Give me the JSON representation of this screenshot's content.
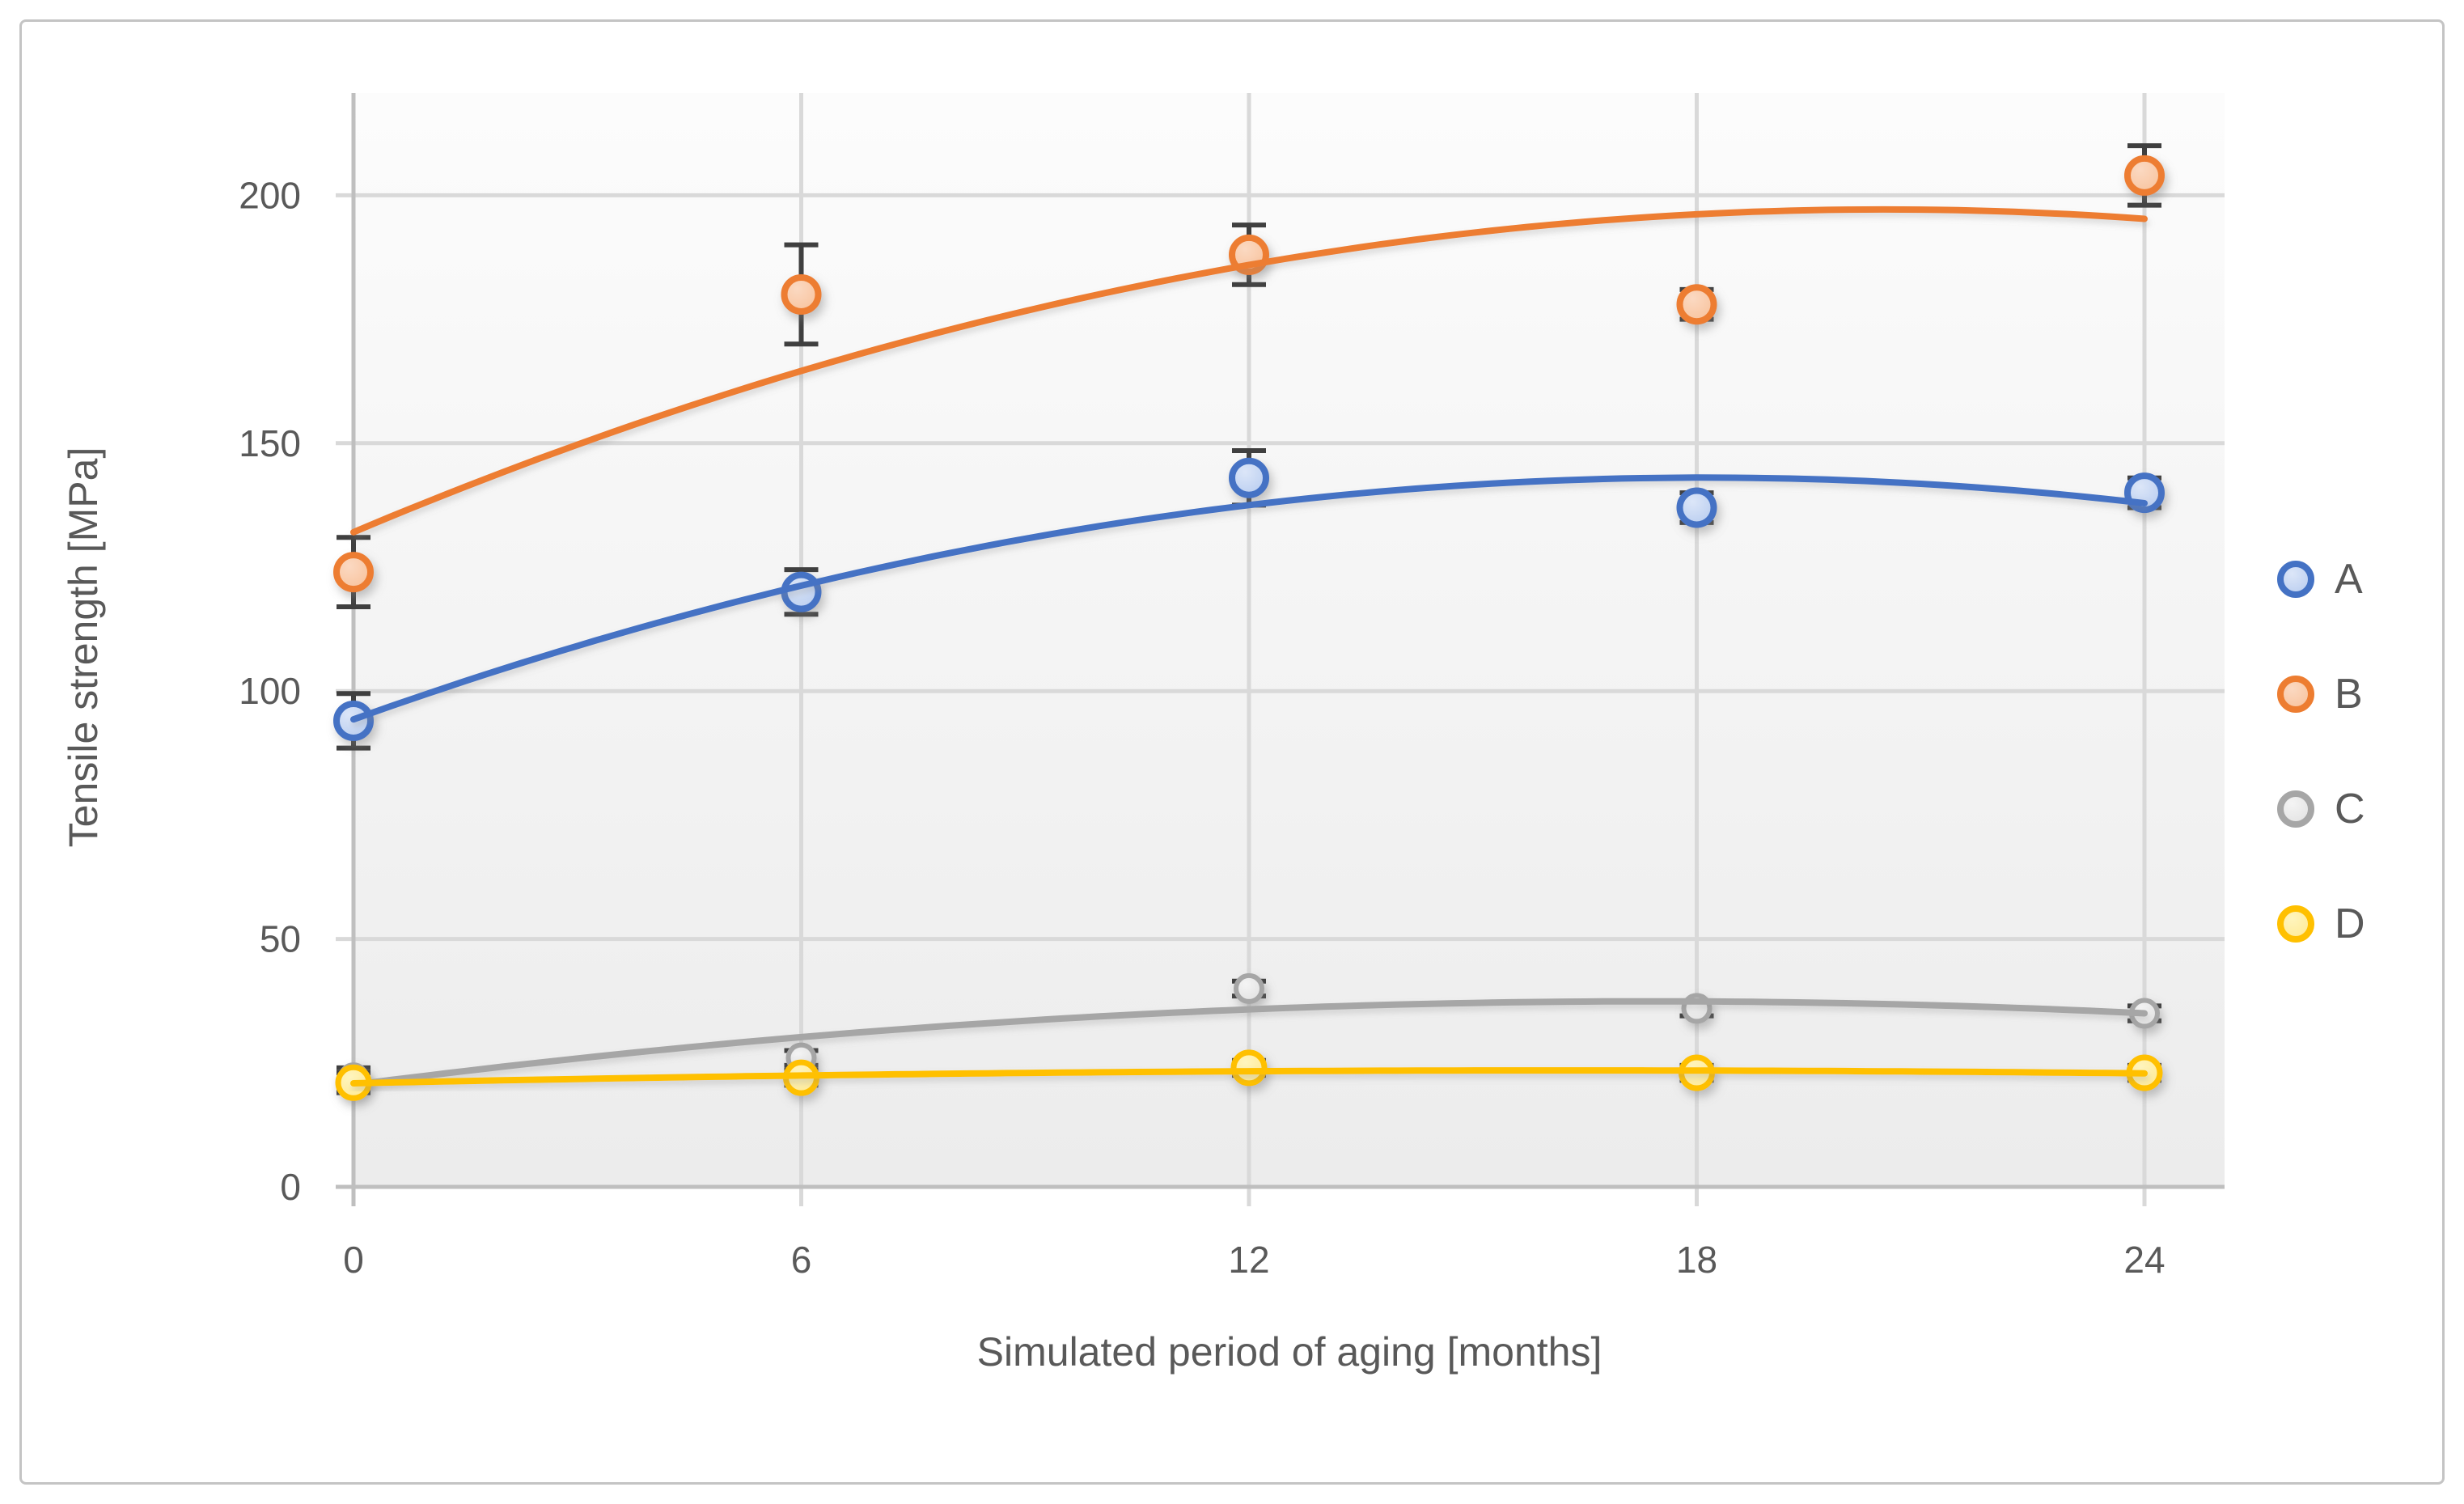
{
  "figure": {
    "border_color": "#C4C4C4",
    "background_color": "#FFFFFF",
    "text_color": "#595959",
    "gridline_color": "#D9D9D9",
    "axis_line_color": "#BFBFBF",
    "error_bar_color": "#3F3F3F",
    "plot_bg_top": "#FCFCFC",
    "plot_bg_bottom": "#ECECEC"
  },
  "chart_data": {
    "type": "scatter",
    "title": "",
    "xlabel": "Simulated period of aging [months]",
    "ylabel": "Tensile strength [MPa]",
    "x_ticks": [
      0,
      6,
      12,
      18,
      24
    ],
    "y_ticks": [
      0,
      50,
      100,
      150,
      200
    ],
    "xlim": [
      0,
      25.1
    ],
    "ylim": [
      0,
      220.6
    ],
    "grid": true,
    "legend_position": "right",
    "x": [
      0,
      6,
      12,
      18,
      24
    ],
    "series": [
      {
        "name": "C",
        "values": [
          22,
          26,
          40,
          36,
          35
        ],
        "errors": [
          2,
          1.5,
          1.5,
          1.5,
          1.5
        ],
        "color": "#A6A6A6",
        "fill_inner": "#F4F4F4",
        "fill_outer": "#DDDDDD",
        "marker_radius": 16,
        "marker_stroke": 6,
        "trend": "poly2"
      },
      {
        "name": "D",
        "values": [
          21,
          22,
          24,
          23,
          23
        ],
        "errors": [
          2,
          1.5,
          1.5,
          1.5,
          1.5
        ],
        "color": "#FFC000",
        "fill_inner": "#FFF5BE",
        "fill_outer": "#FFE78A",
        "marker_radius": 19,
        "marker_stroke": 7,
        "trend": "poly2"
      },
      {
        "name": "A",
        "values": [
          94,
          120,
          143,
          137,
          140
        ],
        "errors": [
          5.5,
          4.5,
          5.5,
          3,
          3
        ],
        "color": "#4472C4",
        "fill_inner": "#DCE6F8",
        "fill_outer": "#B0C7EE",
        "marker_radius": 21,
        "marker_stroke": 8,
        "trend": "poly2"
      },
      {
        "name": "B",
        "values": [
          124,
          180,
          188,
          178,
          204
        ],
        "errors": [
          7,
          10,
          6,
          3,
          6
        ],
        "color": "#ED7D31",
        "fill_inner": "#FBD9C2",
        "fill_outer": "#F7BD93",
        "marker_radius": 21,
        "marker_stroke": 8,
        "trend": "poly2"
      }
    ],
    "legend": [
      "A",
      "B",
      "C",
      "D"
    ]
  }
}
